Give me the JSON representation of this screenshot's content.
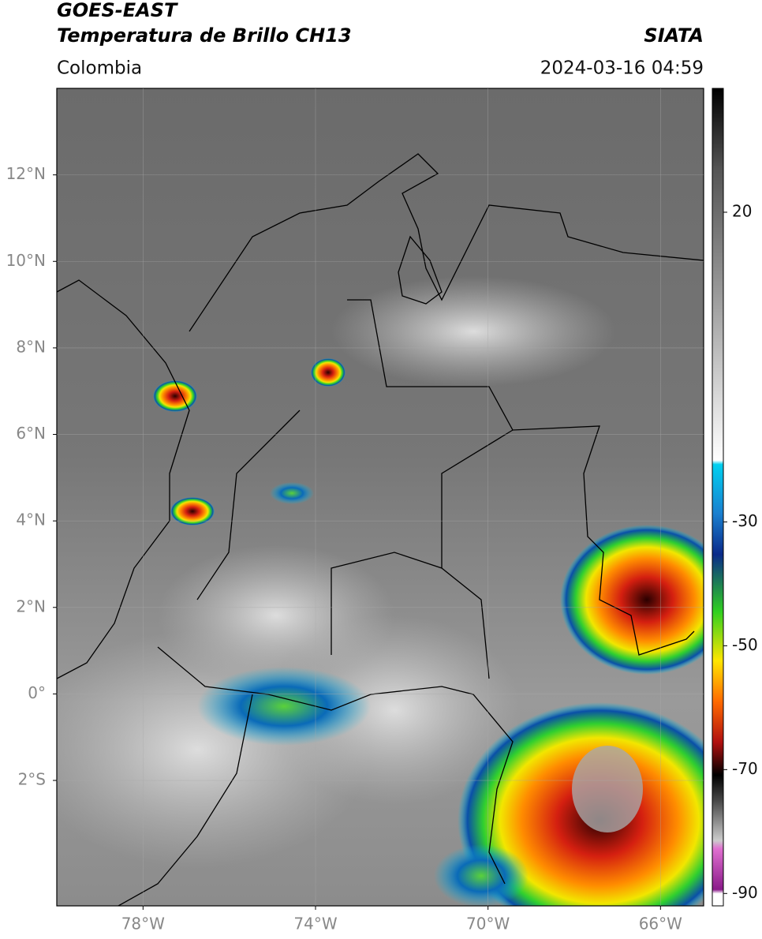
{
  "header": {
    "title_line1": "GOES-EAST",
    "title_line2": "Temperatura de Brillo CH13",
    "region": "Colombia",
    "source": "SIATA",
    "datetime": "2024-03-16 04:59"
  },
  "map": {
    "lonlim": [
      -80,
      -65
    ],
    "latlim": [
      -4.9,
      14
    ],
    "lon_ticks": [
      {
        "value": -78,
        "label": "78°W"
      },
      {
        "value": -74,
        "label": "74°W"
      },
      {
        "value": -70,
        "label": "70°W"
      },
      {
        "value": -66,
        "label": "66°W"
      }
    ],
    "lat_ticks": [
      {
        "value": 12,
        "label": "12°N"
      },
      {
        "value": 10,
        "label": "10°N"
      },
      {
        "value": 8,
        "label": "8°N"
      },
      {
        "value": 6,
        "label": "6°N"
      },
      {
        "value": 4,
        "label": "4°N"
      },
      {
        "value": 2,
        "label": "2°N"
      },
      {
        "value": 0,
        "label": "0°"
      },
      {
        "value": -2,
        "label": "2°S"
      }
    ],
    "grid": true
  },
  "colorbar": {
    "lim": [
      -92,
      40
    ],
    "ticks": [
      20,
      -30,
      -50,
      -70,
      -90
    ]
  }
}
